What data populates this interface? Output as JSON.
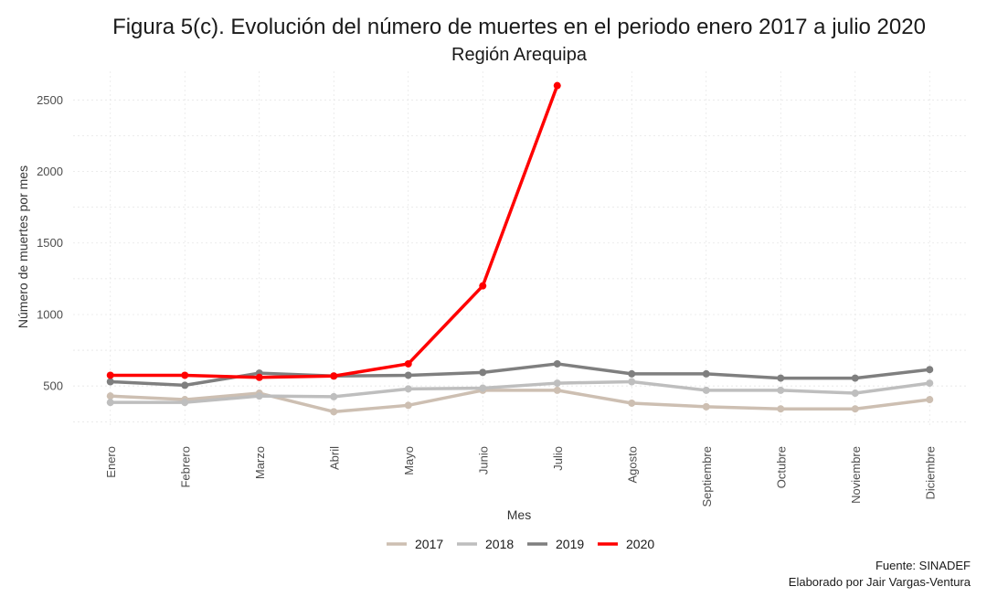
{
  "chart_data": {
    "type": "line",
    "title": "Figura 5(c). Evolución del número de muertes en el periodo enero 2017 a julio 2020",
    "subtitle": "Región Arequipa",
    "xlabel": "Mes",
    "ylabel": "Número de muertes por mes",
    "categories": [
      "Enero",
      "Febrero",
      "Marzo",
      "Abril",
      "Mayo",
      "Junio",
      "Julio",
      "Agosto",
      "Septiembre",
      "Octubre",
      "Noviembre",
      "Diciembre"
    ],
    "yticks": [
      500,
      1000,
      1500,
      2000,
      2500
    ],
    "ylim": [
      220,
      2700
    ],
    "grid": true,
    "legend_position": "bottom",
    "series": [
      {
        "name": "2017",
        "color": "#cdbfb2",
        "values": [
          430,
          405,
          450,
          320,
          365,
          470,
          470,
          380,
          355,
          340,
          340,
          405
        ]
      },
      {
        "name": "2018",
        "color": "#bebebe",
        "values": [
          385,
          385,
          430,
          425,
          480,
          485,
          520,
          530,
          470,
          470,
          450,
          520
        ]
      },
      {
        "name": "2019",
        "color": "#7f7f7f",
        "values": [
          530,
          505,
          590,
          570,
          575,
          595,
          655,
          585,
          585,
          555,
          555,
          615
        ]
      },
      {
        "name": "2020",
        "color": "#ff0000",
        "values": [
          575,
          575,
          560,
          570,
          655,
          1200,
          2600,
          null,
          null,
          null,
          null,
          null
        ]
      }
    ],
    "caption": [
      "Fuente: SINADEF",
      "Elaborado por Jair Vargas-Ventura"
    ]
  }
}
